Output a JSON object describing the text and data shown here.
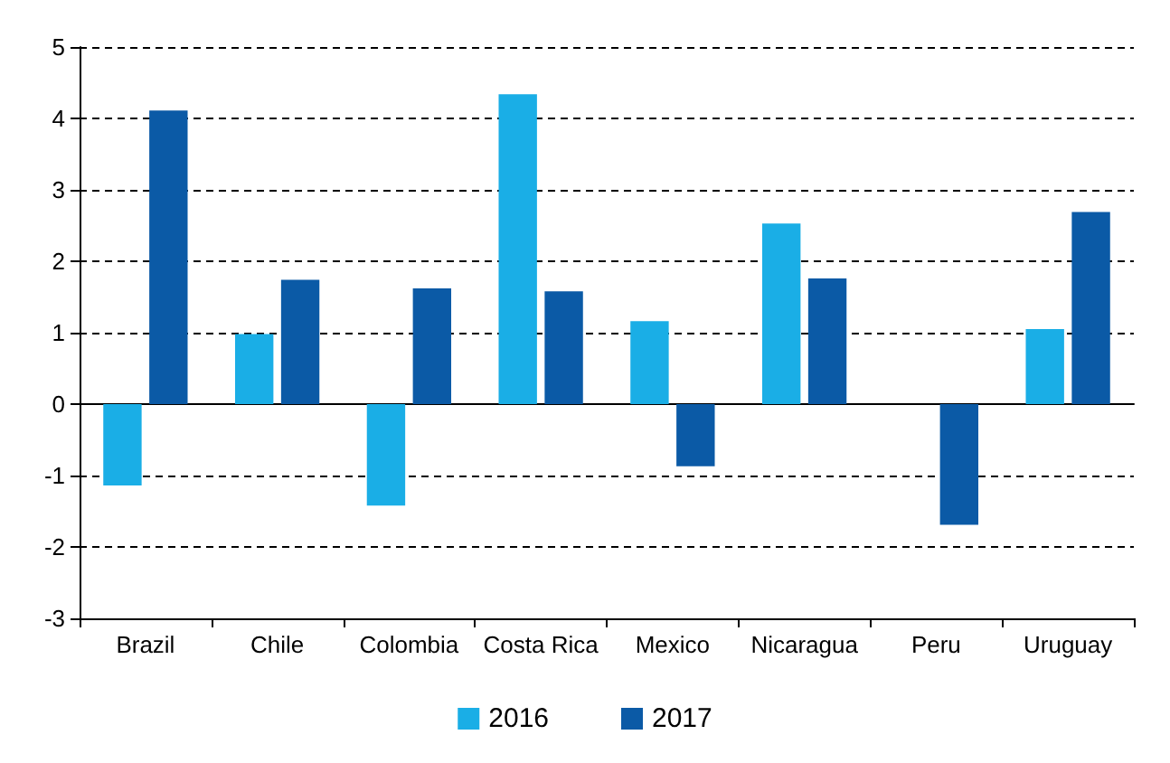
{
  "chart_data": {
    "type": "bar",
    "categories": [
      "Brazil",
      "Chile",
      "Colombia",
      "Costa Rica",
      "Mexico",
      "Nicaragua",
      "Peru",
      "Uruguay"
    ],
    "series": [
      {
        "name": "2016",
        "color": "#1aaee6",
        "values": [
          -1.14,
          0.98,
          -1.42,
          4.34,
          1.16,
          2.53,
          null,
          1.05
        ]
      },
      {
        "name": "2017",
        "color": "#0b5aa6",
        "values": [
          4.11,
          1.74,
          1.62,
          1.58,
          -0.87,
          1.76,
          -1.69,
          2.69
        ]
      }
    ],
    "ylim": [
      -3,
      5
    ],
    "yticks": [
      -3,
      -2,
      -1,
      0,
      1,
      2,
      3,
      4,
      5
    ],
    "grid": "y",
    "legend": "bottom"
  }
}
